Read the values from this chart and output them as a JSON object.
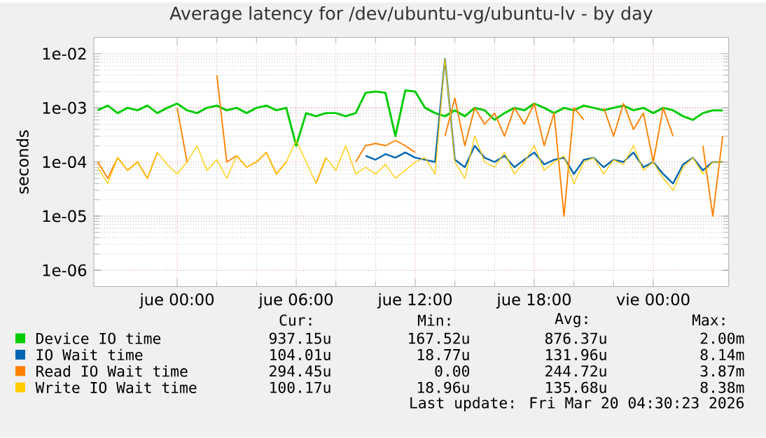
{
  "chart_data": {
    "type": "line",
    "title": "Average latency for /dev/ubuntu-vg/ubuntu-lv - by day",
    "ylabel": "seconds",
    "x": [
      "2026-03-18T20:00",
      "2026-03-18T20:30",
      "2026-03-18T21:00",
      "2026-03-18T21:30",
      "2026-03-18T22:00",
      "2026-03-18T22:30",
      "2026-03-18T23:00",
      "2026-03-18T23:30",
      "2026-03-19T00:00",
      "2026-03-19T00:30",
      "2026-03-19T01:00",
      "2026-03-19T01:30",
      "2026-03-19T02:00",
      "2026-03-19T02:30",
      "2026-03-19T03:00",
      "2026-03-19T03:30",
      "2026-03-19T04:00",
      "2026-03-19T04:30",
      "2026-03-19T05:00",
      "2026-03-19T05:30",
      "2026-03-19T06:00",
      "2026-03-19T06:30",
      "2026-03-19T07:00",
      "2026-03-19T07:30",
      "2026-03-19T08:00",
      "2026-03-19T08:30",
      "2026-03-19T09:00",
      "2026-03-19T09:30",
      "2026-03-19T10:00",
      "2026-03-19T10:30",
      "2026-03-19T11:00",
      "2026-03-19T11:30",
      "2026-03-19T12:00",
      "2026-03-19T12:30",
      "2026-03-19T13:00",
      "2026-03-19T13:30",
      "2026-03-19T14:00",
      "2026-03-19T14:30",
      "2026-03-19T15:00",
      "2026-03-19T15:30",
      "2026-03-19T16:00",
      "2026-03-19T16:30",
      "2026-03-19T17:00",
      "2026-03-19T17:30",
      "2026-03-19T18:00",
      "2026-03-19T18:30",
      "2026-03-19T19:00",
      "2026-03-19T19:30",
      "2026-03-19T20:00",
      "2026-03-19T20:30",
      "2026-03-19T21:00",
      "2026-03-19T21:30",
      "2026-03-19T22:00",
      "2026-03-19T22:30",
      "2026-03-19T23:00",
      "2026-03-19T23:30",
      "2026-03-20T00:00",
      "2026-03-20T00:30",
      "2026-03-20T01:00",
      "2026-03-20T01:30",
      "2026-03-20T02:00",
      "2026-03-20T02:30",
      "2026-03-20T03:00",
      "2026-03-20T03:30"
    ],
    "series": [
      {
        "name": "Device IO time",
        "color": "#00cc00",
        "values": [
          0.0009,
          0.0011,
          0.0008,
          0.001,
          0.0009,
          0.0011,
          0.0008,
          0.001,
          0.0012,
          0.0009,
          0.0008,
          0.001,
          0.0011,
          0.0009,
          0.001,
          0.0008,
          0.001,
          0.0011,
          0.0009,
          0.001,
          0.0002,
          0.0008,
          0.0007,
          0.0008,
          0.0008,
          0.0007,
          0.0008,
          0.0019,
          0.002,
          0.0019,
          0.0003,
          0.0021,
          0.002,
          0.001,
          0.0008,
          0.0007,
          0.0009,
          0.0007,
          0.001,
          0.0009,
          0.0006,
          0.0008,
          0.001,
          0.0009,
          0.0012,
          0.001,
          0.0008,
          0.001,
          0.0009,
          0.0011,
          0.001,
          0.0009,
          0.001,
          0.0011,
          0.0009,
          0.001,
          0.0008,
          0.001,
          0.0009,
          0.0007,
          0.0006,
          0.0008,
          0.0009,
          0.0009
        ]
      },
      {
        "name": "IO Wait time",
        "color": "#0066b3",
        "values": [
          null,
          null,
          null,
          null,
          null,
          null,
          null,
          null,
          null,
          null,
          null,
          null,
          null,
          null,
          null,
          null,
          null,
          null,
          null,
          null,
          null,
          null,
          null,
          null,
          null,
          null,
          null,
          0.00013,
          0.00011,
          0.00014,
          0.00012,
          0.00015,
          0.00012,
          0.00011,
          0.0001,
          0.008,
          0.00011,
          8e-05,
          0.0002,
          0.00012,
          0.0001,
          0.00013,
          8e-05,
          0.00011,
          0.00015,
          9e-05,
          0.00011,
          0.00012,
          6e-05,
          0.00011,
          0.00012,
          8e-05,
          0.00011,
          0.0001,
          0.00015,
          8e-05,
          0.0001,
          6e-05,
          4e-05,
          9e-05,
          0.00012,
          7e-05,
          0.0001,
          0.0001
        ]
      },
      {
        "name": "Read IO Wait time",
        "color": "#ff8000",
        "values": [
          0.0001,
          5e-05,
          0.00012,
          7e-05,
          0.0001,
          5e-05,
          0.00015,
          null,
          0.001,
          0.0001,
          null,
          null,
          0.004,
          0.0001,
          0.00013,
          8e-05,
          0.0001,
          0.00015,
          6e-05,
          0.0001,
          null,
          null,
          4e-05,
          0.00012,
          null,
          null,
          0.0001,
          0.0002,
          0.00022,
          0.0002,
          0.00025,
          0.0002,
          0.00015,
          null,
          null,
          0.0003,
          0.0015,
          0.0002,
          0.001,
          0.0005,
          0.0008,
          0.0003,
          0.001,
          0.0005,
          0.0012,
          0.0002,
          0.0008,
          1e-05,
          0.001,
          0.0006,
          null,
          0.001,
          0.0003,
          0.0012,
          0.0004,
          0.0008,
          0.0001,
          0.001,
          0.0003,
          null,
          null,
          0.0002,
          1e-05,
          0.0003
        ]
      },
      {
        "name": "Write IO Wait time",
        "color": "#ffcc00",
        "values": [
          8e-05,
          4e-05,
          0.00012,
          7e-05,
          0.0001,
          5e-05,
          0.00015,
          9e-05,
          6e-05,
          0.0001,
          0.0002,
          7e-05,
          0.00011,
          5e-05,
          0.00013,
          8e-05,
          0.0001,
          0.00015,
          6e-05,
          0.0001,
          0.00025,
          0.0001,
          4e-05,
          0.00012,
          7e-05,
          0.0002,
          6e-05,
          8e-05,
          6e-05,
          9e-05,
          5e-05,
          7e-05,
          0.0001,
          0.00012,
          6e-05,
          0.008,
          0.0001,
          5e-05,
          0.0003,
          0.0001,
          8e-05,
          0.00015,
          6e-05,
          0.0001,
          0.0002,
          7e-05,
          0.0001,
          0.00013,
          4e-05,
          0.0001,
          0.00012,
          6e-05,
          0.00011,
          9e-05,
          0.0002,
          7e-05,
          0.0001,
          5e-05,
          3e-05,
          8e-05,
          0.00012,
          6e-05,
          0.0001,
          0.0001
        ]
      }
    ],
    "log": "y",
    "xlim": [
      "2026-03-18T19:48",
      "2026-03-20T03:48"
    ],
    "ylim": [
      5e-07,
      0.02
    ],
    "xticks": [
      {
        "value": "2026-03-19T00:00",
        "label": "jue 00:00"
      },
      {
        "value": "2026-03-19T06:00",
        "label": "jue 06:00"
      },
      {
        "value": "2026-03-19T12:00",
        "label": "jue 12:00"
      },
      {
        "value": "2026-03-19T18:00",
        "label": "jue 18:00"
      },
      {
        "value": "2026-03-20T00:00",
        "label": "vie 00:00"
      }
    ],
    "yticks": [
      {
        "value": 1e-06,
        "label": "1e-06"
      },
      {
        "value": 1e-05,
        "label": "1e-05"
      },
      {
        "value": 0.0001,
        "label": "1e-04"
      },
      {
        "value": 0.001,
        "label": "1e-03"
      },
      {
        "value": 0.01,
        "label": "1e-02"
      }
    ],
    "grid": true,
    "legend": "bottom",
    "line_style": "solid",
    "annotations": [
      "Cur:",
      "Min:",
      "Avg:",
      "Max:",
      "937.15u",
      "167.52u",
      "876.37u",
      "2.00m",
      "104.01u",
      "18.77u",
      "131.96u",
      "8.14m",
      "294.45u",
      "0.00",
      "244.72u",
      "3.87m",
      "100.17u",
      "18.96u",
      "135.68u",
      "8.38m",
      "Last update: Fri Mar 20 04:30:23 2026"
    ]
  }
}
